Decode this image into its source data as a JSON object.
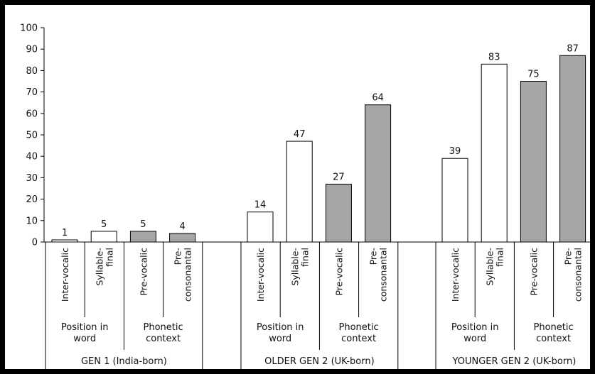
{
  "chart_data": {
    "type": "bar",
    "ylim": [
      0,
      100
    ],
    "yticks": [
      0,
      10,
      20,
      30,
      40,
      50,
      60,
      70,
      80,
      90,
      100
    ],
    "grid": false,
    "groups": [
      {
        "name": "GEN 1 (India-born)",
        "subgroups": [
          {
            "label_lines": [
              "Position in",
              "word"
            ]
          },
          {
            "label_lines": [
              "Phonetic",
              "context"
            ]
          }
        ],
        "bars": [
          {
            "label_lines": [
              "Inter-vocalic"
            ],
            "value": 1,
            "fill": "#ffffff"
          },
          {
            "label_lines": [
              "Syllable-",
              "final"
            ],
            "value": 5,
            "fill": "#ffffff"
          },
          {
            "label_lines": [
              "Pre-vocalic"
            ],
            "value": 5,
            "fill": "#a6a6a6"
          },
          {
            "label_lines": [
              "Pre-",
              "consonantal"
            ],
            "value": 4,
            "fill": "#a6a6a6"
          }
        ]
      },
      {
        "name": "OLDER GEN 2 (UK-born)",
        "subgroups": [
          {
            "label_lines": [
              "Position in",
              "word"
            ]
          },
          {
            "label_lines": [
              "Phonetic",
              "context"
            ]
          }
        ],
        "bars": [
          {
            "label_lines": [
              "Inter-vocalic"
            ],
            "value": 14,
            "fill": "#ffffff"
          },
          {
            "label_lines": [
              "Syllable-",
              "final"
            ],
            "value": 47,
            "fill": "#ffffff"
          },
          {
            "label_lines": [
              "Pre-vocalic"
            ],
            "value": 27,
            "fill": "#a6a6a6"
          },
          {
            "label_lines": [
              "Pre-",
              "consonantal"
            ],
            "value": 64,
            "fill": "#a6a6a6"
          }
        ]
      },
      {
        "name": "YOUNGER GEN 2 (UK-born)",
        "subgroups": [
          {
            "label_lines": [
              "Position in",
              "word"
            ]
          },
          {
            "label_lines": [
              "Phonetic",
              "context"
            ]
          }
        ],
        "bars": [
          {
            "label_lines": [
              "Inter-vocalic"
            ],
            "value": 39,
            "fill": "#ffffff"
          },
          {
            "label_lines": [
              "Syllable-",
              "final"
            ],
            "value": 83,
            "fill": "#ffffff"
          },
          {
            "label_lines": [
              "Pre-vocalic"
            ],
            "value": 75,
            "fill": "#a6a6a6"
          },
          {
            "label_lines": [
              "Pre-",
              "consonantal"
            ],
            "value": 87,
            "fill": "#a6a6a6"
          }
        ]
      }
    ]
  }
}
